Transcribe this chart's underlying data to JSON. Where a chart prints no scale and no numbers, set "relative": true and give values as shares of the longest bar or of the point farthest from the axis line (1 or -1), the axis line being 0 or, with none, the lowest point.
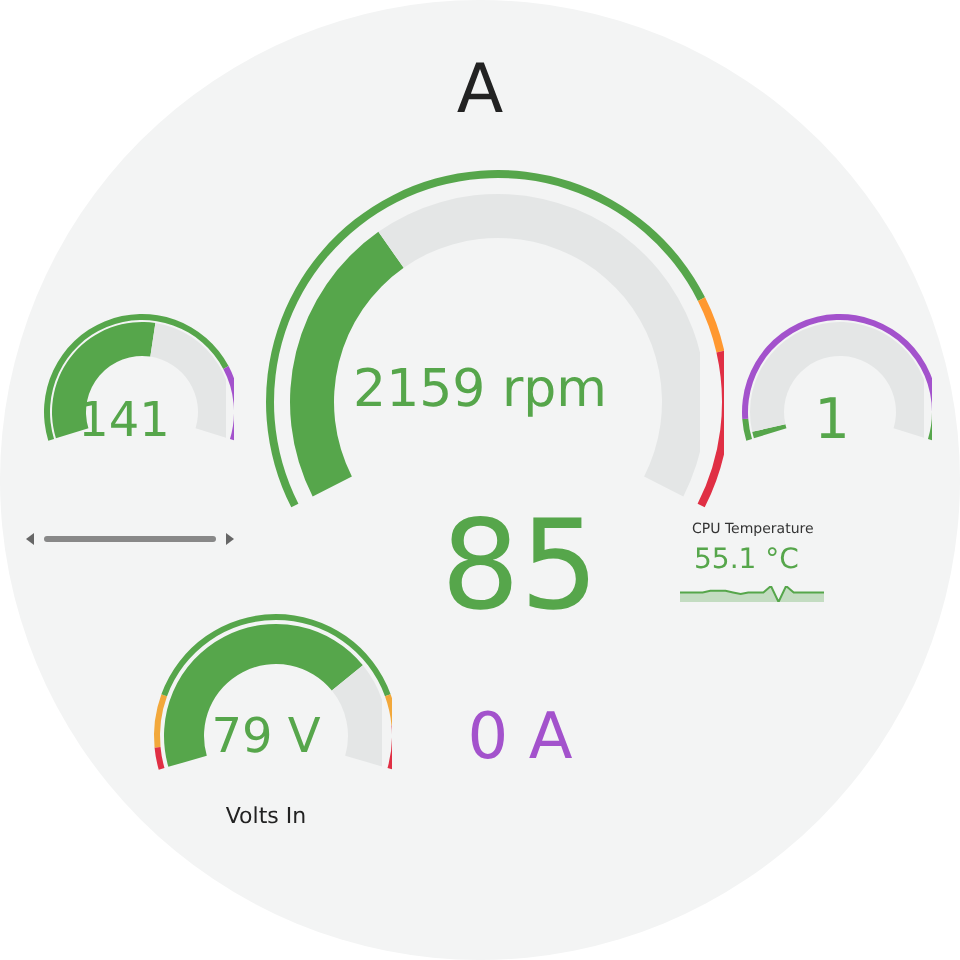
{
  "chart_data": [
    {
      "type": "donut",
      "title": "A",
      "annotations": [
        "2159 rpm"
      ],
      "categories": [
        null,
        null
      ],
      "values": [
        35,
        65
      ],
      "colors": [
        "#56a64b",
        "#e4e6e6"
      ]
    },
    {
      "type": "donut",
      "categories": [
        null,
        null,
        null
      ],
      "values": [
        77,
        6,
        17
      ],
      "colors": [
        "#56a64b",
        "#ff9830",
        "#e02f44"
      ]
    },
    {
      "type": "donut",
      "annotations": [
        "141"
      ],
      "categories": [
        null,
        null
      ],
      "values": [
        54,
        46
      ],
      "colors": [
        "#56a64b",
        "#e4e6e6"
      ]
    },
    {
      "type": "donut",
      "categories": [
        null,
        null
      ],
      "values": [
        79,
        21
      ],
      "colors": [
        "#56a64b",
        "#a352cc"
      ]
    },
    {
      "type": "donut",
      "annotations": [
        "1"
      ],
      "categories": [
        null,
        null
      ],
      "values": [
        2,
        98
      ],
      "colors": [
        "#56a64b",
        "#e4e6e6"
      ]
    },
    {
      "type": "donut",
      "categories": [
        null,
        null,
        null
      ],
      "values": [
        6,
        86,
        8
      ],
      "colors": [
        "#56a64b",
        "#a352cc",
        "#56a64b"
      ]
    },
    {
      "type": "other",
      "annotations": [
        "85"
      ],
      "color": "#56a64b"
    },
    {
      "type": "line",
      "title": "CPU Temperature",
      "annotations": [
        "55.1 °C"
      ],
      "relative": true,
      "color": "#56a64b",
      "categories": [
        null,
        null,
        null,
        null,
        null,
        null,
        null,
        null,
        null,
        null,
        null,
        null,
        null,
        null,
        null,
        null,
        null,
        null,
        null,
        null
      ],
      "values": [
        0.6,
        0.6,
        0.6,
        0.6,
        0.7,
        0.7,
        0.7,
        0.6,
        0.5,
        0.6,
        0.6,
        0.6,
        1,
        0,
        1,
        0.6,
        0.6,
        0.6,
        0.6,
        0.6
      ]
    },
    {
      "type": "donut",
      "title": "Volts In",
      "annotations": [
        "79 V"
      ],
      "categories": [
        null,
        null
      ],
      "values": [
        74,
        26
      ],
      "colors": [
        "#56a64b",
        "#e4e6e6"
      ]
    },
    {
      "type": "donut",
      "categories": [
        null,
        null,
        null,
        null,
        null
      ],
      "values": [
        5,
        12,
        66,
        7,
        10
      ],
      "colors": [
        "#e02f44",
        "#f2a83b",
        "#56a64b",
        "#f2a83b",
        "#e02f44"
      ]
    },
    {
      "type": "other",
      "annotations": [
        "0 A"
      ],
      "color": "#a352cc"
    }
  ]
}
